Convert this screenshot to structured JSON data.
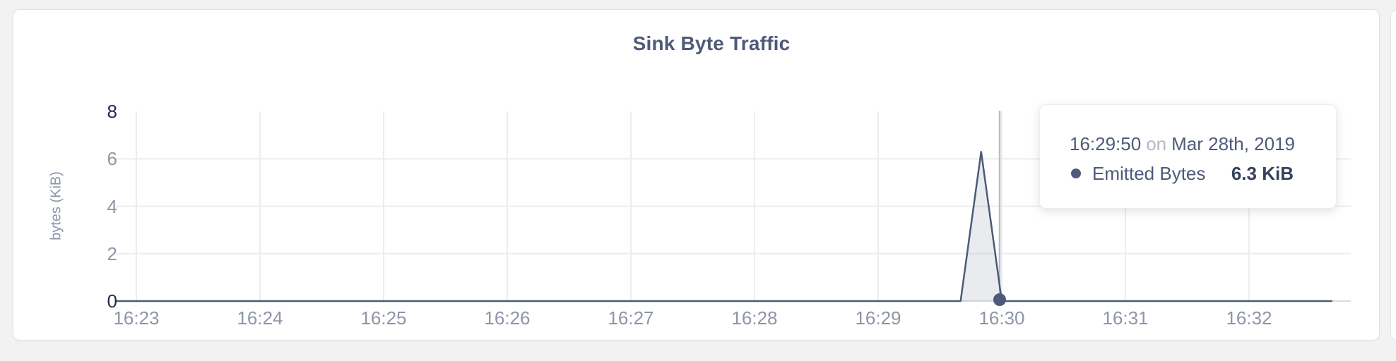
{
  "card": {
    "title": "Sink Byte Traffic"
  },
  "y_axis": {
    "label": "bytes (KiB)",
    "ticks": [
      {
        "label": "8",
        "emphasis": true
      },
      {
        "label": "6",
        "emphasis": false
      },
      {
        "label": "4",
        "emphasis": false
      },
      {
        "label": "2",
        "emphasis": false
      },
      {
        "label": "0",
        "emphasis": true
      }
    ]
  },
  "tooltip": {
    "time": "16:29:50",
    "conjunction": "on",
    "date": "Mar 28th, 2019",
    "series_label": "Emitted Bytes",
    "value": "6.3 KiB"
  },
  "colors": {
    "series_line": "#4d5a78",
    "area_fill": "rgba(77,90,120,0.12)",
    "gridline": "#ededf0",
    "baseline": "#d9dbe1",
    "crosshair": "#b8bcc7",
    "title": "#4e5a78",
    "tick_gray": "#8d95a8",
    "tick_dark": "#1c2b4d"
  },
  "chart_data": {
    "type": "area",
    "title": "Sink Byte Traffic",
    "xlabel": "",
    "ylabel": "bytes (KiB)",
    "ylim": [
      0,
      8
    ],
    "y_ticks": [
      0,
      2,
      4,
      6,
      8
    ],
    "x_ticks": [
      "16:23",
      "16:24",
      "16:25",
      "16:26",
      "16:27",
      "16:28",
      "16:29",
      "16:30",
      "16:31",
      "16:32"
    ],
    "grid": true,
    "legend_position": "none",
    "series": [
      {
        "name": "Emitted Bytes",
        "unit": "KiB",
        "points": [
          [
            "16:22:50",
            0
          ],
          [
            "16:29:40",
            0
          ],
          [
            "16:29:50",
            6.3
          ],
          [
            "16:30:00",
            0
          ],
          [
            "16:32:40",
            0
          ]
        ]
      }
    ],
    "highlight": {
      "time": "16:29:50",
      "date": "Mar 28th, 2019",
      "series": "Emitted Bytes",
      "value_kib": 6.3
    }
  }
}
